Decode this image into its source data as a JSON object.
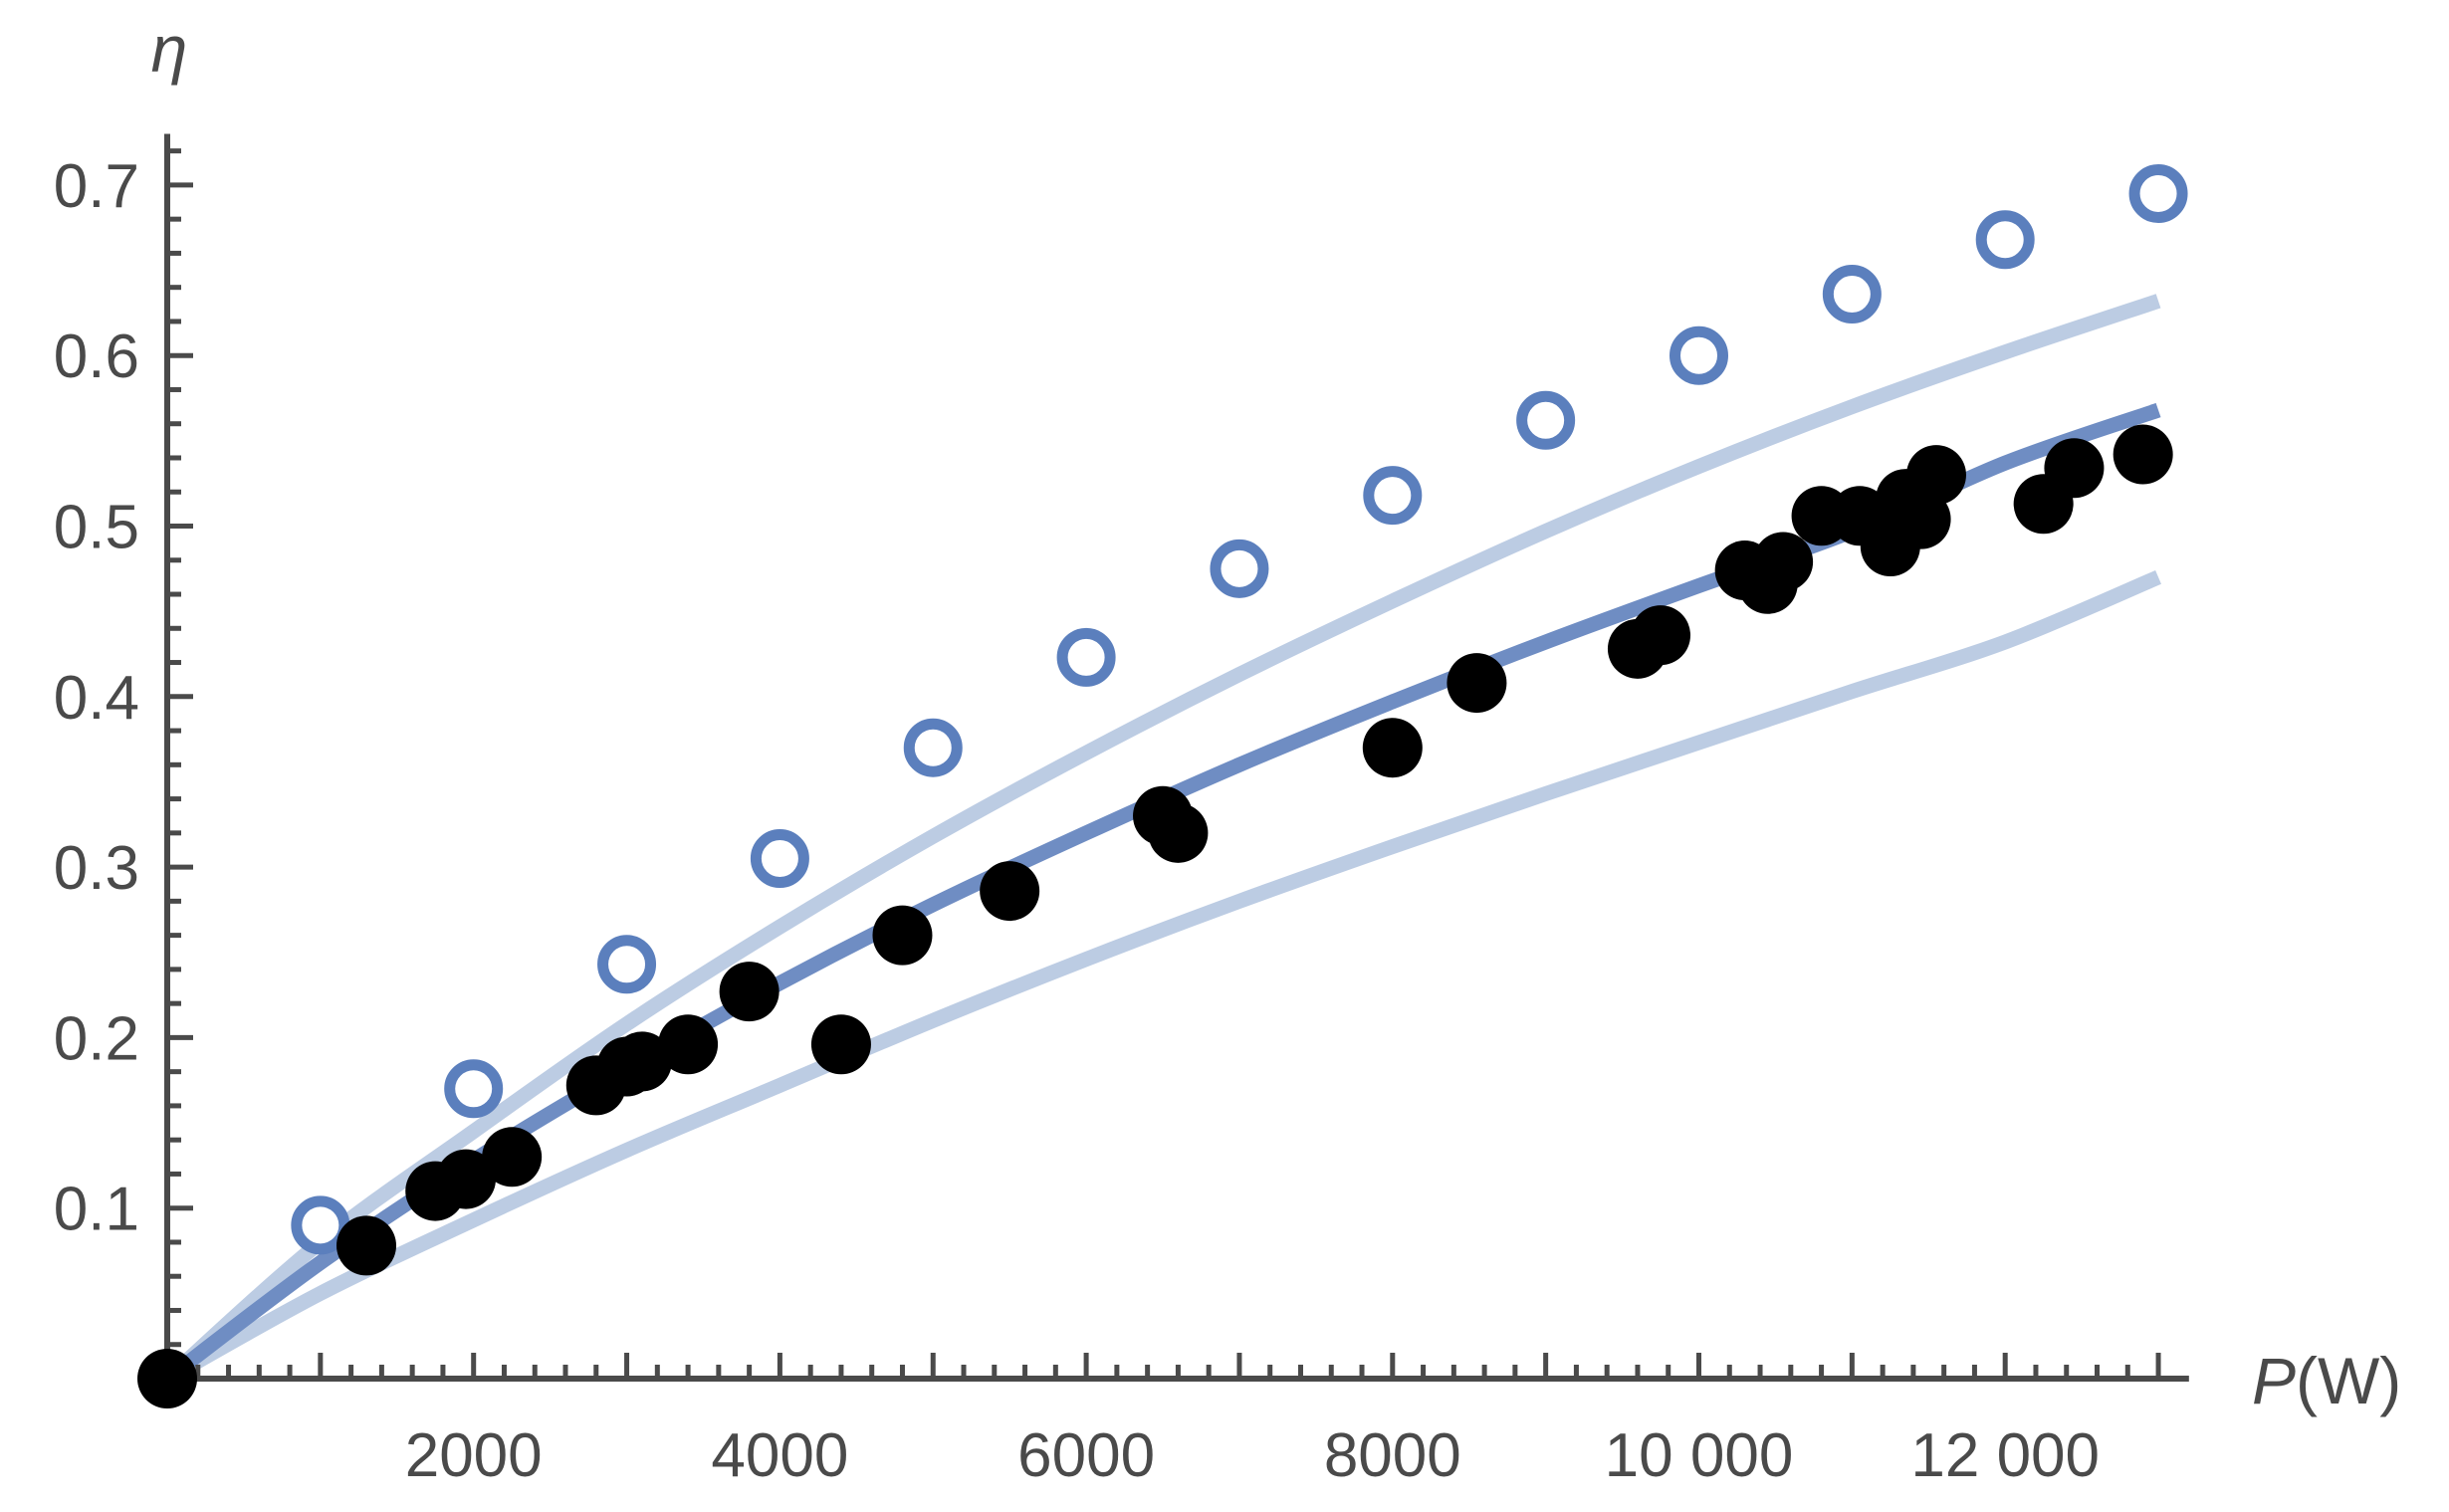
{
  "chart_data": {
    "type": "scatter",
    "title": "",
    "xlabel_var": "P",
    "xlabel_unit": "(W)",
    "ylabel": "η",
    "xlim": [
      0,
      13200
    ],
    "ylim": [
      0,
      0.73
    ],
    "x_ticks": [
      2000,
      4000,
      6000,
      8000,
      10000,
      12000
    ],
    "x_tick_labels": [
      "2000",
      "4000",
      "6000",
      "8000",
      "10 000",
      "12 000"
    ],
    "y_ticks": [
      0.1,
      0.2,
      0.3,
      0.4,
      0.5,
      0.6,
      0.7
    ],
    "y_tick_labels": [
      "0.1",
      "0.2",
      "0.3",
      "0.4",
      "0.5",
      "0.6",
      "0.7"
    ],
    "grid": false,
    "legend": "none",
    "colors": {
      "open_markers": "#5b7fbd",
      "fit_line": "#6f8dc3",
      "band_lines": "#bccce3",
      "measured": "#000000",
      "axis": "#4a4a4a"
    },
    "series": [
      {
        "style": "open-circle",
        "x": [
          0,
          1000,
          2000,
          3000,
          4000,
          5000,
          6000,
          7000,
          8000,
          9000,
          10000,
          11000,
          12000,
          13000
        ],
        "y": [
          0,
          0.09,
          0.17,
          0.243,
          0.305,
          0.37,
          0.423,
          0.475,
          0.518,
          0.562,
          0.6,
          0.636,
          0.668,
          0.695
        ]
      },
      {
        "style": "line",
        "x": [
          0,
          1000,
          2000,
          3000,
          4000,
          5000,
          6000,
          7000,
          8000,
          9000,
          10000,
          11000,
          12000,
          13000
        ],
        "y": [
          0,
          0.068,
          0.128,
          0.182,
          0.232,
          0.278,
          0.32,
          0.36,
          0.397,
          0.432,
          0.465,
          0.497,
          0.537,
          0.568
        ]
      },
      {
        "style": "band-upper",
        "x": [
          0,
          1000,
          2000,
          3000,
          4000,
          5000,
          6000,
          7000,
          8000,
          9000,
          10000,
          11000,
          12000,
          13000
        ],
        "y": [
          0,
          0.08,
          0.145,
          0.208,
          0.265,
          0.318,
          0.367,
          0.413,
          0.456,
          0.497,
          0.535,
          0.57,
          0.602,
          0.632
        ]
      },
      {
        "style": "band-lower",
        "x": [
          0,
          1000,
          2000,
          3000,
          4000,
          5000,
          6000,
          7000,
          8000,
          9000,
          10000,
          11000,
          12000,
          13000
        ],
        "y": [
          0,
          0.05,
          0.093,
          0.134,
          0.172,
          0.21,
          0.246,
          0.28,
          0.312,
          0.343,
          0.373,
          0.403,
          0.432,
          0.47
        ]
      },
      {
        "style": "filled-circle",
        "x": [
          0,
          1300,
          1750,
          1950,
          2250,
          2800,
          3000,
          3100,
          3400,
          3800,
          4400,
          4800,
          5500,
          6500,
          6600,
          8000,
          8550,
          9600,
          9750,
          10300,
          10450,
          10550,
          10800,
          11050,
          11250,
          11350,
          11450,
          11550,
          12250,
          12450,
          12900
        ],
        "y": [
          0,
          0.078,
          0.11,
          0.117,
          0.13,
          0.172,
          0.183,
          0.186,
          0.196,
          0.227,
          0.196,
          0.26,
          0.286,
          0.33,
          0.32,
          0.37,
          0.408,
          0.428,
          0.436,
          0.474,
          0.466,
          0.479,
          0.506,
          0.506,
          0.488,
          0.516,
          0.504,
          0.53,
          0.513,
          0.534,
          0.542
        ]
      }
    ]
  }
}
